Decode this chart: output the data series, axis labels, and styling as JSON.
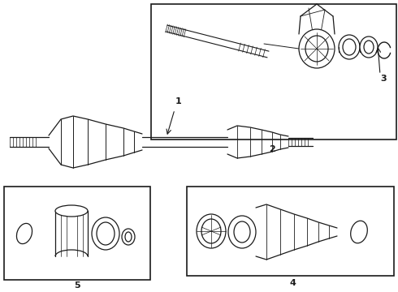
{
  "bg_color": "#ffffff",
  "line_color": "#1a1a1a",
  "fig_width": 4.9,
  "fig_height": 3.6,
  "dpi": 100,
  "label_fontsize": 8,
  "label_fontweight": "bold"
}
